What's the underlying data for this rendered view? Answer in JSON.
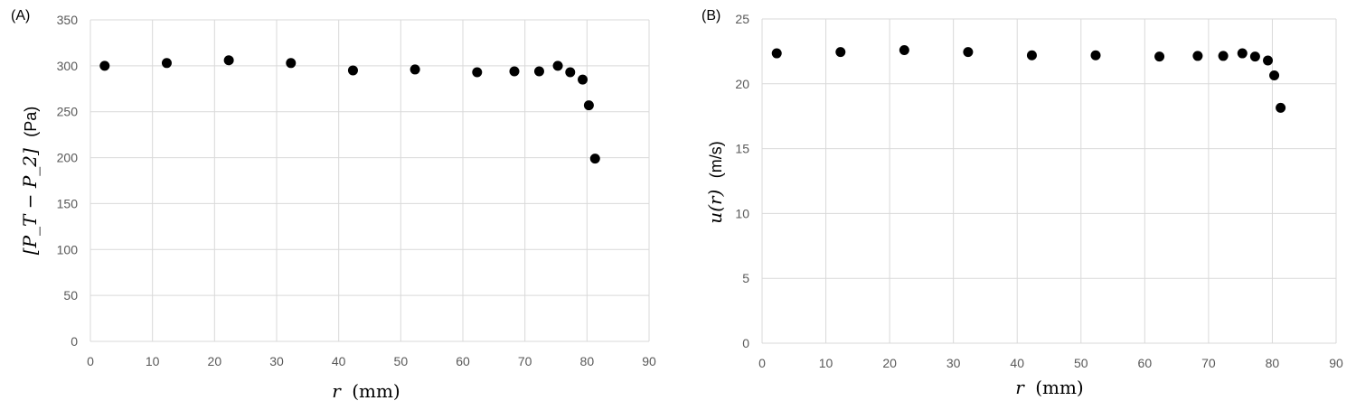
{
  "chart_data": [
    {
      "panel_label": "(A)",
      "type": "scatter",
      "xlabel_var": "r",
      "xlabel_unit": "(mm)",
      "ylabel_math": "[P_T − P_2]",
      "ylabel_unit": "(Pa)",
      "xlim": [
        0,
        90
      ],
      "ylim": [
        0,
        350
      ],
      "x_ticks": [
        0,
        10,
        20,
        30,
        40,
        50,
        60,
        70,
        80,
        90
      ],
      "y_ticks": [
        0,
        50,
        100,
        150,
        200,
        250,
        300,
        350
      ],
      "grid": true,
      "series": [
        {
          "color": "#000000",
          "x": [
            2.3,
            12.3,
            22.3,
            32.3,
            42.3,
            52.3,
            62.3,
            68.3,
            72.3,
            75.3,
            77.3,
            79.3,
            80.3,
            81.3
          ],
          "y": [
            300,
            303,
            306,
            303,
            295,
            296,
            293,
            294,
            294,
            300,
            293,
            285,
            257,
            199
          ]
        }
      ]
    },
    {
      "panel_label": "(B)",
      "type": "scatter",
      "xlabel_var": "r",
      "xlabel_unit": "(mm)",
      "ylabel_var": "u(r)",
      "ylabel_unit": "(m/s)",
      "xlim": [
        0,
        90
      ],
      "ylim": [
        0,
        25
      ],
      "x_ticks": [
        0,
        10,
        20,
        30,
        40,
        50,
        60,
        70,
        80,
        90
      ],
      "y_ticks": [
        0,
        5,
        10,
        15,
        20,
        25
      ],
      "grid": true,
      "series": [
        {
          "color": "#000000",
          "x": [
            2.3,
            12.3,
            22.3,
            32.3,
            42.3,
            52.3,
            62.3,
            68.3,
            72.3,
            75.3,
            77.3,
            79.3,
            80.3,
            81.3
          ],
          "y": [
            22.35,
            22.45,
            22.6,
            22.45,
            22.2,
            22.2,
            22.1,
            22.15,
            22.15,
            22.35,
            22.1,
            21.8,
            20.65,
            18.15
          ]
        }
      ]
    }
  ]
}
